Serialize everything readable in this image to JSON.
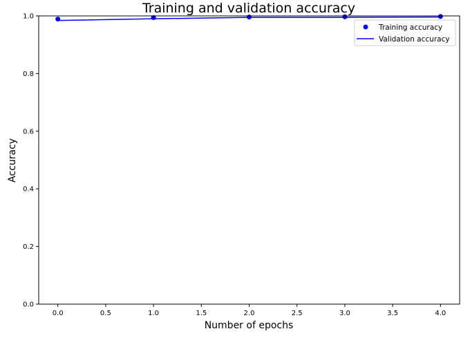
{
  "chart_data": {
    "type": "line",
    "title": "Training and validation accuracy",
    "xlabel": "Number of epochs",
    "ylabel": "Accuracy",
    "xlim": [
      -0.2,
      4.2
    ],
    "ylim": [
      0.0,
      1.0
    ],
    "xticks": [
      "0.0",
      "0.5",
      "1.0",
      "1.5",
      "2.0",
      "2.5",
      "3.0",
      "3.5",
      "4.0"
    ],
    "yticks": [
      "0.0",
      "0.2",
      "0.4",
      "0.6",
      "0.8",
      "1.0"
    ],
    "grid": false,
    "legend_position": "top-right",
    "series": [
      {
        "name": "Training accuracy",
        "style": "points",
        "color": "#0000ff",
        "x": [
          0,
          1,
          2,
          3,
          4
        ],
        "values": [
          0.989,
          0.994,
          0.996,
          0.997,
          0.998
        ]
      },
      {
        "name": "Validation accuracy",
        "style": "line",
        "color": "#0000ff",
        "x": [
          0,
          1,
          2,
          3,
          4
        ],
        "values": [
          0.984,
          0.99,
          0.995,
          0.995,
          0.996
        ]
      }
    ]
  }
}
